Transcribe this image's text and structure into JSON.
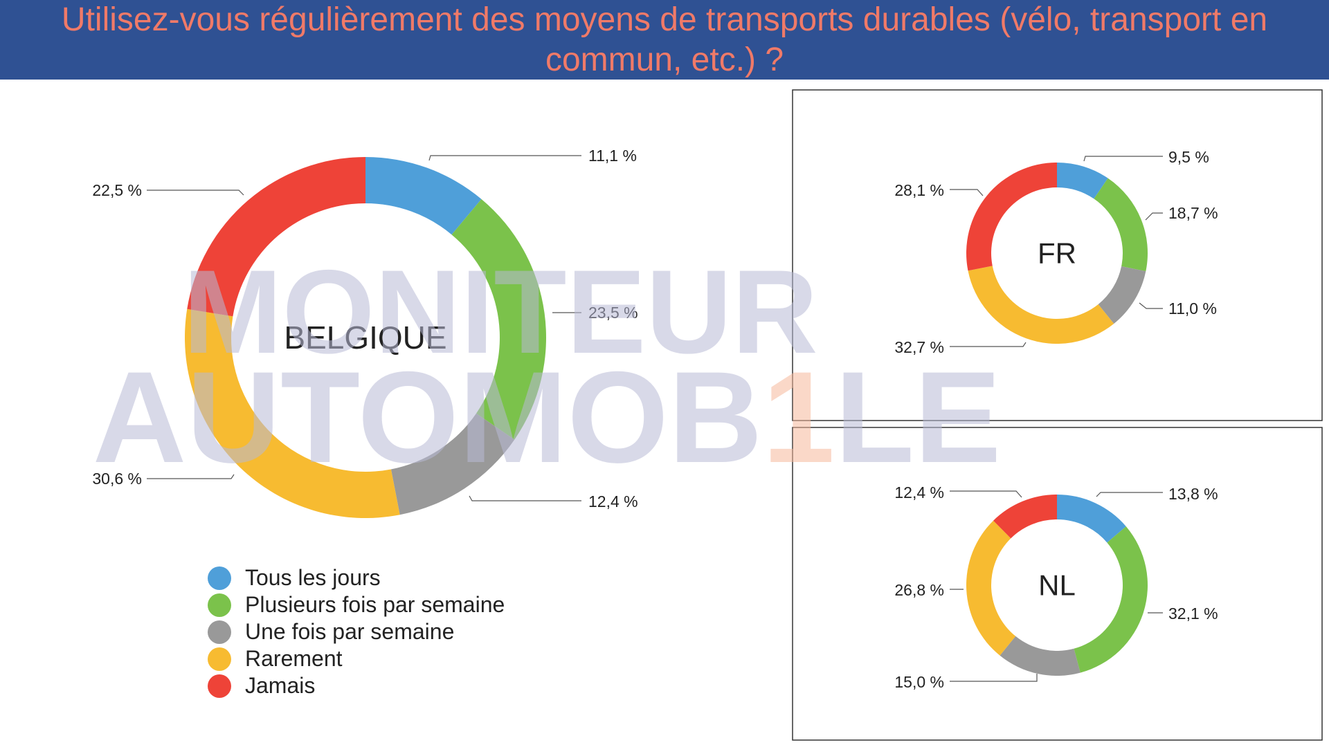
{
  "header": {
    "title": "Utilisez-vous régulièrement des moyens de transports durables (vélo, transport en commun, etc.) ?"
  },
  "watermark": {
    "line1": "MONITEUR",
    "line2_before": "AUTOMOB",
    "line2_accent": "1",
    "line2_after": "LE"
  },
  "colors": {
    "header_bg": "#2f5193",
    "title": "#f07a68",
    "tous_les_jours": "#4f9fd9",
    "plusieurs_fois": "#7bc24b",
    "une_fois": "#999999",
    "rarement": "#f7bb31",
    "jamais": "#ee4338",
    "watermark": "#b8bad6",
    "watermark_accent": "#f5b89a"
  },
  "chart_data": [
    {
      "type": "donut",
      "center_label": "BELGIQUE",
      "categories": [
        "Tous les jours",
        "Plusieurs fois par semaine",
        "Une fois par semaine",
        "Rarement",
        "Jamais"
      ],
      "values": [
        11.1,
        23.5,
        12.4,
        30.6,
        22.5
      ],
      "value_labels": [
        "11,1 %",
        "23,5 %",
        "12,4 %",
        "30,6 %",
        "22,5 %"
      ]
    },
    {
      "type": "donut",
      "center_label": "FR",
      "categories": [
        "Tous les jours",
        "Plusieurs fois par semaine",
        "Une fois par semaine",
        "Rarement",
        "Jamais"
      ],
      "values": [
        9.5,
        18.7,
        11.0,
        32.7,
        28.1
      ],
      "value_labels": [
        "9,5 %",
        "18,7 %",
        "11,0 %",
        "32,7 %",
        "28,1 %"
      ]
    },
    {
      "type": "donut",
      "center_label": "NL",
      "categories": [
        "Tous les jours",
        "Plusieurs fois par semaine",
        "Une fois par semaine",
        "Rarement",
        "Jamais"
      ],
      "values": [
        13.8,
        32.1,
        15.0,
        26.8,
        12.4
      ],
      "value_labels": [
        "13,8 %",
        "32,1 %",
        "15,0 %",
        "26,8 %",
        "12,4 %"
      ]
    }
  ],
  "legend": {
    "items": [
      {
        "label": "Tous les jours",
        "color": "#4f9fd9"
      },
      {
        "label": "Plusieurs fois par semaine",
        "color": "#7bc24b"
      },
      {
        "label": "Une fois par semaine",
        "color": "#999999"
      },
      {
        "label": "Rarement",
        "color": "#f7bb31"
      },
      {
        "label": "Jamais",
        "color": "#ee4338"
      }
    ]
  }
}
